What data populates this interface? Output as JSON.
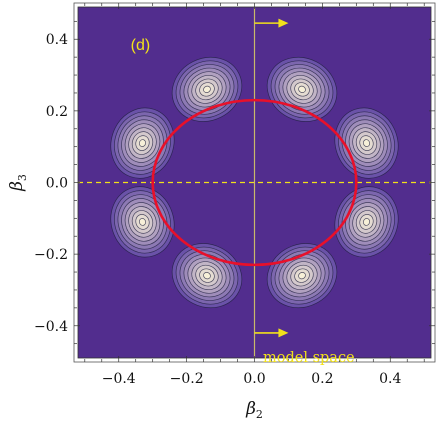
{
  "chart_data": {
    "type": "heatmap",
    "panel_label": "(d)",
    "xlabel": "β",
    "xlabel_sub": "2",
    "ylabel": "β",
    "ylabel_sub": "3",
    "xlim": [
      -0.52,
      0.52
    ],
    "ylim": [
      -0.49,
      0.49
    ],
    "xticks": [
      -0.4,
      -0.2,
      0.0,
      0.2,
      0.4
    ],
    "xtick_labels": [
      "−0.4",
      "−0.2",
      "0.0",
      "0.2",
      "0.4"
    ],
    "yticks": [
      -0.4,
      -0.2,
      0.0,
      0.2,
      0.4
    ],
    "ytick_labels": [
      "−0.4",
      "−0.2",
      "0.0",
      "0.2",
      "0.4"
    ],
    "annotation": "model space",
    "colors": {
      "background": "#522d8e",
      "contour_line": "#1e1e3c",
      "contour_fill_low": "#6a52a8",
      "contour_fill_high": "#f7f0d8",
      "ellipse": "#e8102a",
      "axis_lines": "#c9b96a",
      "arrow": "#f2e11a",
      "label_text": "#f2e11a"
    },
    "peaks": [
      {
        "b2": 0.14,
        "b3": 0.26
      },
      {
        "b2": -0.14,
        "b3": 0.26
      },
      {
        "b2": 0.33,
        "b3": 0.11
      },
      {
        "b2": -0.33,
        "b3": 0.11
      },
      {
        "b2": 0.33,
        "b3": -0.11
      },
      {
        "b2": -0.33,
        "b3": -0.11
      },
      {
        "b2": 0.14,
        "b3": -0.26
      },
      {
        "b2": -0.14,
        "b3": -0.26
      }
    ],
    "contour_levels": 9,
    "ellipse": {
      "center": [
        0.0,
        0.0
      ],
      "semi_axis_b2": 0.3,
      "semi_axis_b3": 0.23
    },
    "reference_lines": {
      "vertical_b2": 0.0,
      "horizontal_b3": 0.0,
      "horizontal_style": "dashed"
    }
  }
}
